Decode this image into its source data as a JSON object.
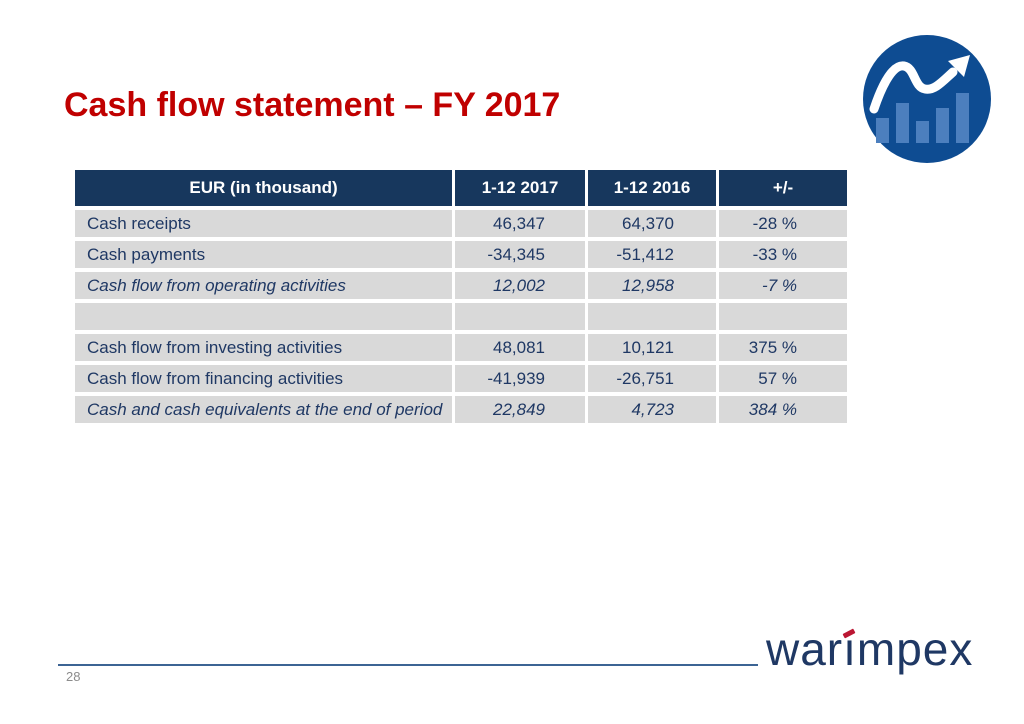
{
  "slide": {
    "title": "Cash flow statement – FY 2017",
    "page_number": "28"
  },
  "brand": {
    "wordmark_pre": "war",
    "wordmark_i": "ı",
    "wordmark_post": "mpex"
  },
  "table": {
    "columns": [
      "EUR (in thousand)",
      "1-12 2017",
      "1-12 2016",
      "+/-"
    ],
    "rows": [
      {
        "label": "Cash receipts",
        "v2017": "46,347",
        "v2016": "64,370",
        "delta": "-28 %",
        "italic": false
      },
      {
        "label": "Cash payments",
        "v2017": "-34,345",
        "v2016": "-51,412",
        "delta": "-33 %",
        "italic": false
      },
      {
        "label": "Cash flow from operating activities",
        "v2017": "12,002",
        "v2016": "12,958",
        "delta": "-7 %",
        "italic": true
      },
      {
        "label": "",
        "v2017": "",
        "v2016": "",
        "delta": "",
        "italic": false
      },
      {
        "label": "Cash flow from investing activities",
        "v2017": "48,081",
        "v2016": "10,121",
        "delta": "375 %",
        "italic": false
      },
      {
        "label": "Cash flow from financing activities",
        "v2017": "-41,939",
        "v2016": "-26,751",
        "delta": "57 %",
        "italic": false
      },
      {
        "label": "Cash and cash equivalents at the end of period",
        "v2017": "22,849",
        "v2016": "4,723",
        "delta": "384 %",
        "italic": true
      }
    ]
  },
  "colors": {
    "title-red": "#C00000",
    "header-navy": "#17375D",
    "text-navy": "#1F3864",
    "row-gray": "#D9D9D9",
    "circle-blue": "#0E4C92",
    "bar-blue": "#4C7FBE",
    "accent-red": "#BB1733",
    "rule-blue": "#3C6494",
    "page-gray": "#8C8C8C"
  }
}
